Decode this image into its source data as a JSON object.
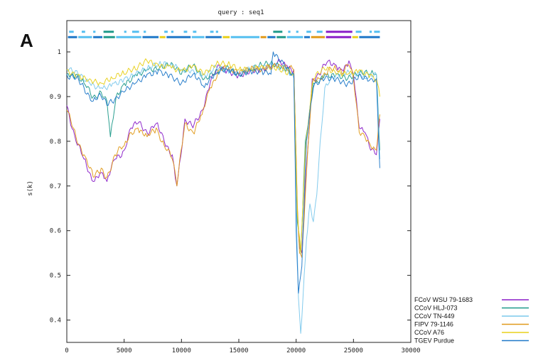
{
  "panel_label": "A",
  "chart_data": {
    "type": "line",
    "title": "query : seq1",
    "xlabel": "",
    "ylabel": "s(k)",
    "xlim": [
      0,
      30000
    ],
    "ylim": [
      0.35,
      1.07
    ],
    "xticks": [
      0,
      5000,
      10000,
      15000,
      20000,
      25000,
      30000
    ],
    "xtick_labels": [
      "0",
      "5000",
      "10000",
      "15000",
      "20000",
      "25000",
      "30000"
    ],
    "yticks": [
      0.4,
      0.5,
      0.6,
      0.7,
      0.8,
      0.9,
      1.0
    ],
    "ytick_labels": [
      "0.4",
      "0.5",
      "0.6",
      "0.7",
      "0.8",
      "0.9",
      "1"
    ],
    "legend_position": "bottom-right",
    "series": [
      {
        "name": "FCoV WSU 79-1683",
        "color": "#8a1fc8",
        "x": [
          0,
          800,
          1500,
          2300,
          3000,
          3500,
          4200,
          5000,
          5600,
          6200,
          7000,
          7800,
          8500,
          9200,
          9600,
          10300,
          11000,
          11800,
          12500,
          13300,
          14000,
          15000,
          16000,
          17000,
          18000,
          18600,
          19200,
          19800,
          20100,
          20300,
          20500,
          20800,
          21400,
          22000,
          22800,
          23500,
          24000,
          24600,
          25000,
          25500,
          26000,
          26500,
          27000,
          27300
        ],
        "y": [
          0.88,
          0.8,
          0.76,
          0.71,
          0.73,
          0.71,
          0.76,
          0.78,
          0.83,
          0.84,
          0.82,
          0.84,
          0.8,
          0.77,
          0.7,
          0.85,
          0.83,
          0.87,
          0.93,
          0.97,
          0.96,
          0.95,
          0.96,
          0.96,
          0.97,
          0.98,
          0.97,
          0.96,
          0.65,
          0.56,
          0.55,
          0.7,
          0.94,
          0.95,
          0.98,
          0.97,
          0.96,
          0.98,
          0.95,
          0.83,
          0.82,
          0.78,
          0.77,
          0.85
        ]
      },
      {
        "name": "CCoV HLJ-073",
        "color": "#1f9a8a",
        "x": [
          0,
          800,
          1500,
          2300,
          3000,
          3500,
          3800,
          4300,
          5000,
          6000,
          7000,
          8000,
          9000,
          10000,
          11000,
          12000,
          13000,
          14000,
          15000,
          16000,
          17000,
          18000,
          19000,
          19800,
          20100,
          20400,
          20800,
          21500,
          22500,
          23500,
          24500,
          25500,
          26500,
          27000,
          27300
        ],
        "y": [
          0.95,
          0.95,
          0.93,
          0.9,
          0.91,
          0.89,
          0.81,
          0.9,
          0.93,
          0.95,
          0.96,
          0.96,
          0.97,
          0.95,
          0.97,
          0.94,
          0.96,
          0.97,
          0.95,
          0.96,
          0.97,
          0.97,
          0.96,
          0.95,
          0.62,
          0.55,
          0.8,
          0.93,
          0.95,
          0.95,
          0.94,
          0.95,
          0.95,
          0.95,
          0.78
        ]
      },
      {
        "name": "CCoV TN-449",
        "color": "#7cc8ec",
        "x": [
          0,
          1000,
          2000,
          3000,
          4000,
          5000,
          6000,
          7000,
          8000,
          9000,
          10000,
          11000,
          12000,
          13000,
          14000,
          15000,
          16000,
          17000,
          18000,
          19000,
          19800,
          20000,
          20200,
          20400,
          20600,
          20900,
          21200,
          21500,
          21800,
          22100,
          22500,
          23000,
          24000,
          25000,
          26000,
          27000,
          27300
        ],
        "y": [
          0.96,
          0.95,
          0.93,
          0.92,
          0.93,
          0.94,
          0.95,
          0.96,
          0.97,
          0.97,
          0.96,
          0.96,
          0.95,
          0.97,
          0.96,
          0.95,
          0.96,
          0.96,
          0.97,
          0.96,
          0.94,
          0.65,
          0.45,
          0.37,
          0.45,
          0.58,
          0.66,
          0.62,
          0.68,
          0.8,
          0.92,
          0.94,
          0.95,
          0.95,
          0.94,
          0.95,
          0.76
        ]
      },
      {
        "name": "FIPV 79-1146",
        "color": "#e09a1a",
        "x": [
          0,
          800,
          1500,
          2300,
          3000,
          3500,
          4200,
          5000,
          5600,
          6200,
          7000,
          7800,
          8500,
          9200,
          9600,
          10300,
          11000,
          11800,
          12500,
          13300,
          14000,
          15000,
          16000,
          17000,
          18000,
          18600,
          19200,
          19800,
          20100,
          20300,
          20500,
          20800,
          21400,
          22000,
          22800,
          23500,
          24000,
          24600,
          25000,
          25500,
          26000,
          26500,
          27000,
          27300
        ],
        "y": [
          0.87,
          0.81,
          0.77,
          0.72,
          0.74,
          0.72,
          0.77,
          0.79,
          0.82,
          0.83,
          0.81,
          0.83,
          0.79,
          0.76,
          0.7,
          0.84,
          0.82,
          0.86,
          0.92,
          0.96,
          0.96,
          0.95,
          0.96,
          0.96,
          0.97,
          0.97,
          0.96,
          0.96,
          0.66,
          0.55,
          0.54,
          0.68,
          0.93,
          0.94,
          0.96,
          0.96,
          0.95,
          0.97,
          0.94,
          0.82,
          0.81,
          0.79,
          0.78,
          0.86
        ]
      },
      {
        "name": "CCoV A76",
        "color": "#e8d01a",
        "x": [
          0,
          1000,
          2000,
          3000,
          4000,
          5000,
          6000,
          7000,
          8000,
          9000,
          10000,
          11000,
          12000,
          13000,
          14000,
          15000,
          16000,
          17000,
          18000,
          19000,
          19800,
          20100,
          20400,
          20800,
          21500,
          22500,
          23500,
          24500,
          25500,
          26500,
          27000,
          27300
        ],
        "y": [
          0.96,
          0.95,
          0.94,
          0.93,
          0.94,
          0.95,
          0.96,
          0.98,
          0.97,
          0.97,
          0.96,
          0.97,
          0.95,
          0.97,
          0.97,
          0.96,
          0.96,
          0.97,
          0.97,
          0.96,
          0.95,
          0.64,
          0.55,
          0.78,
          0.94,
          0.96,
          0.95,
          0.95,
          0.96,
          0.95,
          0.94,
          0.9
        ]
      },
      {
        "name": "TGEV Purdue",
        "color": "#1f78c8",
        "x": [
          0,
          800,
          1500,
          2300,
          3000,
          3500,
          4300,
          5000,
          6000,
          7000,
          8000,
          9000,
          10000,
          11000,
          12000,
          13000,
          14000,
          15000,
          16000,
          17000,
          17800,
          18000,
          19000,
          19800,
          20000,
          20200,
          20500,
          20900,
          21500,
          22500,
          23500,
          24500,
          25500,
          26500,
          27000,
          27300
        ],
        "y": [
          0.95,
          0.94,
          0.92,
          0.89,
          0.9,
          0.88,
          0.9,
          0.91,
          0.93,
          0.95,
          0.96,
          0.95,
          0.93,
          0.95,
          0.92,
          0.95,
          0.96,
          0.95,
          0.96,
          0.96,
          0.95,
          1.0,
          0.97,
          0.95,
          0.6,
          0.46,
          0.52,
          0.8,
          0.92,
          0.94,
          0.94,
          0.93,
          0.95,
          0.94,
          0.94,
          0.74
        ]
      }
    ],
    "annotation_tracks": [
      {
        "color_default": "#55bff0",
        "segments": [
          {
            "start": 200,
            "end": 600,
            "color": "#55bff0"
          },
          {
            "start": 1300,
            "end": 1600,
            "color": "#55bff0"
          },
          {
            "start": 2300,
            "end": 2500,
            "color": "#55bff0"
          },
          {
            "start": 3200,
            "end": 4100,
            "color": "#1f9a8a"
          },
          {
            "start": 5000,
            "end": 5200,
            "color": "#55bff0"
          },
          {
            "start": 5700,
            "end": 6300,
            "color": "#55bff0"
          },
          {
            "start": 6700,
            "end": 6900,
            "color": "#55bff0"
          },
          {
            "start": 8500,
            "end": 8800,
            "color": "#55bff0"
          },
          {
            "start": 9100,
            "end": 9300,
            "color": "#55bff0"
          },
          {
            "start": 10200,
            "end": 10500,
            "color": "#55bff0"
          },
          {
            "start": 11000,
            "end": 11300,
            "color": "#55bff0"
          },
          {
            "start": 12500,
            "end": 12800,
            "color": "#55bff0"
          },
          {
            "start": 13000,
            "end": 13200,
            "color": "#55bff0"
          },
          {
            "start": 18000,
            "end": 18800,
            "color": "#1f9a8a"
          },
          {
            "start": 19300,
            "end": 19500,
            "color": "#55bff0"
          },
          {
            "start": 20000,
            "end": 20200,
            "color": "#55bff0"
          },
          {
            "start": 20900,
            "end": 21300,
            "color": "#55bff0"
          },
          {
            "start": 21800,
            "end": 22300,
            "color": "#55bff0"
          },
          {
            "start": 22600,
            "end": 24900,
            "color": "#8a1fc8"
          },
          {
            "start": 25200,
            "end": 25700,
            "color": "#55bff0"
          },
          {
            "start": 26400,
            "end": 26600,
            "color": "#55bff0"
          },
          {
            "start": 26800,
            "end": 27300,
            "color": "#55bff0"
          }
        ]
      },
      {
        "color_default": "#1f78c8",
        "segments": [
          {
            "start": 100,
            "end": 900,
            "color": "#1f78c8"
          },
          {
            "start": 1000,
            "end": 2200,
            "color": "#55bff0"
          },
          {
            "start": 2300,
            "end": 3100,
            "color": "#1f78c8"
          },
          {
            "start": 3200,
            "end": 4200,
            "color": "#1f9a8a"
          },
          {
            "start": 4300,
            "end": 6500,
            "color": "#55bff0"
          },
          {
            "start": 6600,
            "end": 8000,
            "color": "#1f78c8"
          },
          {
            "start": 8100,
            "end": 8600,
            "color": "#e8d01a"
          },
          {
            "start": 8700,
            "end": 10800,
            "color": "#1f78c8"
          },
          {
            "start": 10900,
            "end": 12000,
            "color": "#55bff0"
          },
          {
            "start": 12100,
            "end": 13500,
            "color": "#1f78c8"
          },
          {
            "start": 13600,
            "end": 14200,
            "color": "#e8d01a"
          },
          {
            "start": 14300,
            "end": 16800,
            "color": "#55bff0"
          },
          {
            "start": 16900,
            "end": 17400,
            "color": "#e09a1a"
          },
          {
            "start": 17500,
            "end": 18200,
            "color": "#1f78c8"
          },
          {
            "start": 18300,
            "end": 19100,
            "color": "#1f9a8a"
          },
          {
            "start": 19200,
            "end": 20600,
            "color": "#55bff0"
          },
          {
            "start": 20700,
            "end": 21200,
            "color": "#1f78c8"
          },
          {
            "start": 21300,
            "end": 22500,
            "color": "#e09a1a"
          },
          {
            "start": 22600,
            "end": 24800,
            "color": "#8a1fc8"
          },
          {
            "start": 24900,
            "end": 25400,
            "color": "#e8d01a"
          },
          {
            "start": 25500,
            "end": 27300,
            "color": "#1f78c8"
          }
        ]
      }
    ],
    "grid": false
  }
}
